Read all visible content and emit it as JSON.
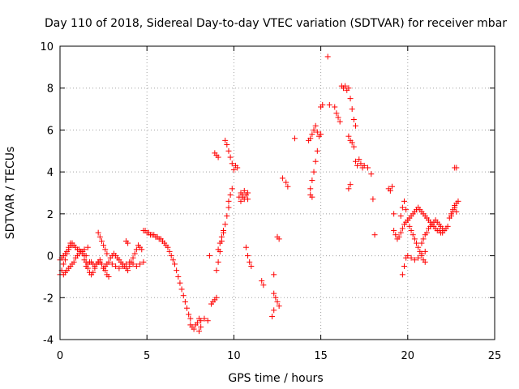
{
  "chart_data": {
    "type": "scatter",
    "title": "Day 110 of 2018, Sidereal Day-to-day VTEC variation (SDTVAR) for receiver mbar",
    "xlabel": "GPS time / hours",
    "ylabel": "SDTVAR / TECUs",
    "xlim": [
      0,
      25
    ],
    "ylim": [
      -4,
      10
    ],
    "grid": true,
    "marker": "+",
    "color": "#ff0000",
    "x_ticks": [
      "0",
      "5",
      "10",
      "15",
      "20",
      "25"
    ],
    "y_ticks": [
      "-4",
      "-2",
      "0",
      "2",
      "4",
      "6",
      "8",
      "10"
    ],
    "segments": [
      {
        "x": [
          0.0,
          0.1,
          0.2,
          0.3,
          0.4,
          0.5,
          0.6,
          0.7
        ],
        "y": [
          -0.9,
          -0.7,
          -0.4,
          -0.2,
          0.1,
          0.4,
          0.6,
          0.5
        ]
      },
      {
        "x": [
          0.0,
          0.1,
          0.2,
          0.3,
          0.4,
          0.5,
          0.6,
          0.7,
          0.8,
          0.9,
          1.0,
          1.1,
          1.2,
          1.3,
          1.4
        ],
        "y": [
          -0.2,
          -0.1,
          0.0,
          0.1,
          0.2,
          0.3,
          0.5,
          0.6,
          0.5,
          0.4,
          0.3,
          0.3,
          0.2,
          0.2,
          0.3
        ]
      },
      {
        "x": [
          0.2,
          0.3,
          0.4,
          0.5,
          0.6,
          0.7,
          0.8,
          0.9,
          1.0,
          1.1,
          1.2,
          1.3,
          1.4,
          1.5
        ],
        "y": [
          -0.9,
          -0.8,
          -0.7,
          -0.6,
          -0.5,
          -0.4,
          -0.3,
          -0.1,
          0.0,
          0.1,
          0.2,
          0.1,
          0.0,
          0.0
        ]
      },
      {
        "x": [
          1.5,
          1.6,
          1.7,
          1.8,
          1.9,
          2.0,
          2.1,
          2.2,
          2.3,
          2.4,
          2.5,
          2.6,
          2.7,
          2.8
        ],
        "y": [
          -0.5,
          -0.6,
          -0.8,
          -0.9,
          -0.8,
          -0.6,
          -0.4,
          -0.3,
          -0.3,
          -0.4,
          -0.6,
          -0.7,
          -0.9,
          -1.0
        ]
      },
      {
        "x": [
          1.4,
          1.5,
          1.6,
          1.7,
          1.8,
          1.9,
          2.0,
          2.1,
          2.2,
          2.3
        ],
        "y": [
          -0.2,
          -0.3,
          -0.4,
          -0.3,
          -0.3,
          -0.4,
          -0.5,
          -0.4,
          -0.3,
          -0.2
        ]
      },
      {
        "x": [
          2.2,
          2.3,
          2.4,
          2.5,
          2.6,
          2.7
        ],
        "y": [
          1.1,
          0.9,
          0.7,
          0.5,
          0.3,
          0.1
        ]
      },
      {
        "x": [
          2.5,
          2.6,
          2.7,
          2.8,
          2.9,
          3.0,
          3.1,
          3.2,
          3.3,
          3.4,
          3.5,
          3.6,
          3.7,
          3.8,
          3.9,
          4.0,
          4.1,
          4.2,
          4.3,
          4.4,
          4.5,
          4.6,
          4.7
        ],
        "y": [
          -0.6,
          -0.5,
          -0.4,
          -0.3,
          -0.1,
          0.0,
          0.1,
          0.0,
          -0.1,
          -0.2,
          -0.3,
          -0.4,
          -0.5,
          -0.6,
          -0.7,
          -0.5,
          -0.3,
          -0.1,
          0.1,
          0.3,
          0.5,
          0.4,
          0.3
        ]
      },
      {
        "x": [
          3.0,
          3.2,
          3.4,
          3.6,
          3.8,
          4.0,
          4.2,
          4.4,
          4.6,
          4.8
        ],
        "y": [
          -0.4,
          -0.5,
          -0.6,
          -0.5,
          -0.4,
          -0.3,
          -0.4,
          -0.5,
          -0.4,
          -0.3
        ]
      },
      {
        "x": [
          1.6,
          3.8,
          3.9
        ],
        "y": [
          0.4,
          0.7,
          0.6
        ]
      },
      {
        "x": [
          4.8,
          4.9,
          5.0,
          5.1,
          5.2,
          5.3,
          5.4,
          5.5,
          5.6,
          5.7,
          5.8,
          5.9,
          6.0,
          6.1,
          6.2,
          6.3,
          6.4,
          6.5,
          6.6
        ],
        "y": [
          1.2,
          1.2,
          1.1,
          1.1,
          1.0,
          1.0,
          1.0,
          0.9,
          0.9,
          0.8,
          0.8,
          0.7,
          0.6,
          0.5,
          0.4,
          0.2,
          0.0,
          -0.2,
          -0.4
        ]
      },
      {
        "x": [
          6.7,
          6.8,
          6.9,
          7.0,
          7.1,
          7.2,
          7.3,
          7.4,
          7.5
        ],
        "y": [
          -0.7,
          -1.0,
          -1.3,
          -1.6,
          -1.9,
          -2.2,
          -2.5,
          -2.8,
          -3.0
        ]
      },
      {
        "x": [
          7.5,
          7.6,
          7.7,
          7.8,
          7.9,
          8.0,
          8.1,
          8.3,
          8.5
        ],
        "y": [
          -3.3,
          -3.4,
          -3.5,
          -3.3,
          -3.2,
          -3.0,
          -3.1,
          -3.0,
          -3.1
        ]
      },
      {
        "x": [
          8.0,
          8.1
        ],
        "y": [
          -3.6,
          -3.4
        ]
      },
      {
        "x": [
          8.6,
          8.7,
          8.8,
          8.9,
          9.0
        ],
        "y": [
          0.0,
          -2.3,
          -2.2,
          -2.1,
          -2.0
        ]
      },
      {
        "x": [
          8.9,
          9.0,
          9.1
        ],
        "y": [
          4.9,
          4.8,
          4.7
        ]
      },
      {
        "x": [
          9.0,
          9.1,
          9.2,
          9.3,
          9.4,
          9.5,
          9.6,
          9.7
        ],
        "y": [
          -0.7,
          -0.3,
          0.2,
          0.7,
          1.1,
          1.5,
          1.9,
          2.3
        ]
      },
      {
        "x": [
          9.1,
          9.2,
          9.3,
          9.4
        ],
        "y": [
          0.3,
          0.6,
          0.9,
          1.2
        ]
      },
      {
        "x": [
          9.5,
          9.6,
          9.7,
          9.8,
          9.9
        ],
        "y": [
          5.5,
          5.3,
          5.0,
          4.7,
          4.4
        ]
      },
      {
        "x": [
          9.7,
          9.8,
          9.9
        ],
        "y": [
          2.6,
          2.9,
          3.2
        ]
      },
      {
        "x": [
          10.0,
          10.1,
          10.2
        ],
        "y": [
          4.1,
          4.3,
          4.2
        ]
      },
      {
        "x": [
          10.3,
          10.4,
          10.5,
          10.6,
          10.7,
          10.8
        ],
        "y": [
          2.8,
          3.0,
          2.9,
          2.7,
          2.9,
          3.0
        ]
      },
      {
        "x": [
          10.4,
          10.5,
          10.6,
          10.7,
          10.8
        ],
        "y": [
          2.6,
          2.8,
          3.1,
          2.9,
          2.7
        ]
      },
      {
        "x": [
          10.7,
          10.8,
          10.9,
          11.0
        ],
        "y": [
          0.4,
          0.0,
          -0.3,
          -0.5
        ]
      },
      {
        "x": [
          11.6,
          11.7,
          12.3
        ],
        "y": [
          -1.2,
          -1.4,
          -0.9
        ]
      },
      {
        "x": [
          12.3,
          12.4,
          12.5,
          12.6
        ],
        "y": [
          -1.8,
          -2.0,
          -2.2,
          -2.4
        ]
      },
      {
        "x": [
          12.2,
          12.3,
          12.5,
          12.6
        ],
        "y": [
          -2.9,
          -2.6,
          0.9,
          0.8
        ]
      },
      {
        "x": [
          12.8,
          13.0,
          13.1,
          13.5
        ],
        "y": [
          3.7,
          3.5,
          3.3,
          5.6
        ]
      },
      {
        "x": [
          14.3,
          14.4,
          14.5,
          14.6,
          14.7,
          14.8,
          14.9,
          15.0
        ],
        "y": [
          5.5,
          5.6,
          5.8,
          6.0,
          6.2,
          5.9,
          5.7,
          5.8
        ]
      },
      {
        "x": [
          14.4,
          14.5,
          14.6,
          14.7,
          14.8
        ],
        "y": [
          3.2,
          3.6,
          4.0,
          4.5,
          5.0
        ]
      },
      {
        "x": [
          14.4,
          14.5
        ],
        "y": [
          2.9,
          2.8
        ]
      },
      {
        "x": [
          15.0,
          15.1,
          15.4,
          15.5
        ],
        "y": [
          7.1,
          7.2,
          9.5,
          7.2
        ]
      },
      {
        "x": [
          15.8,
          15.9,
          16.0,
          16.1
        ],
        "y": [
          7.1,
          6.8,
          6.6,
          6.4
        ]
      },
      {
        "x": [
          16.2,
          16.3,
          16.4,
          16.5,
          16.6,
          16.7,
          16.8,
          16.9,
          17.0
        ],
        "y": [
          8.1,
          8.0,
          8.1,
          7.9,
          8.0,
          7.5,
          7.0,
          6.5,
          6.2
        ]
      },
      {
        "x": [
          16.6,
          16.7,
          16.8,
          16.9
        ],
        "y": [
          5.7,
          5.5,
          5.4,
          5.2
        ]
      },
      {
        "x": [
          16.6,
          16.7
        ],
        "y": [
          3.2,
          3.4
        ]
      },
      {
        "x": [
          17.0,
          17.1,
          17.2,
          17.3,
          17.4,
          17.5
        ],
        "y": [
          4.5,
          4.3,
          4.6,
          4.4,
          4.2,
          4.3
        ]
      },
      {
        "x": [
          17.7,
          17.9,
          18.0,
          18.1
        ],
        "y": [
          4.2,
          3.9,
          2.7,
          1.0
        ]
      },
      {
        "x": [
          18.9,
          19.0,
          19.1,
          19.2
        ],
        "y": [
          3.2,
          3.1,
          3.3,
          2.0
        ]
      },
      {
        "x": [
          19.2,
          19.3,
          19.4,
          19.5,
          19.6,
          19.7,
          19.8,
          19.9,
          20.0,
          20.1,
          20.2,
          20.3,
          20.4,
          20.5,
          20.6,
          20.7,
          20.8,
          20.9,
          21.0,
          21.1,
          21.2,
          21.3,
          21.4,
          21.5,
          21.6,
          21.7,
          21.8,
          21.9,
          22.0,
          22.1,
          22.2,
          22.3
        ],
        "y": [
          1.2,
          1.0,
          0.8,
          0.9,
          1.1,
          1.3,
          1.5,
          1.6,
          1.7,
          1.8,
          1.9,
          2.0,
          2.1,
          2.2,
          2.3,
          2.2,
          2.1,
          2.0,
          1.9,
          1.8,
          1.7,
          1.6,
          1.5,
          1.4,
          1.3,
          1.2,
          1.2,
          1.1,
          1.1,
          1.2,
          1.3,
          1.4
        ]
      },
      {
        "x": [
          19.6,
          19.7,
          19.8,
          19.9,
          20.0,
          20.1,
          20.2,
          20.3,
          20.4,
          20.5,
          20.6,
          20.7,
          20.8,
          20.9,
          21.0
        ],
        "y": [
          1.9,
          2.3,
          2.6,
          2.2,
          1.7,
          1.4,
          1.2,
          1.0,
          0.8,
          0.6,
          0.4,
          0.2,
          0.0,
          -0.2,
          -0.3
        ]
      },
      {
        "x": [
          19.7,
          19.8,
          19.9,
          20.0,
          20.2,
          20.4,
          20.6,
          20.8,
          21.0
        ],
        "y": [
          -0.9,
          -0.5,
          -0.1,
          0.0,
          -0.1,
          -0.2,
          -0.1,
          0.1,
          0.2
        ]
      },
      {
        "x": [
          20.8,
          20.9,
          21.0,
          21.1,
          21.2,
          21.3,
          21.4,
          21.5,
          21.6,
          21.7,
          21.8,
          21.9,
          22.0
        ],
        "y": [
          0.6,
          0.8,
          1.0,
          1.1,
          1.3,
          1.4,
          1.5,
          1.6,
          1.7,
          1.6,
          1.5,
          1.4,
          1.3
        ]
      },
      {
        "x": [
          22.4,
          22.5,
          22.6,
          22.7,
          22.8,
          22.9
        ],
        "y": [
          1.8,
          2.0,
          2.2,
          2.4,
          2.5,
          2.6
        ]
      },
      {
        "x": [
          22.5,
          22.6,
          22.7,
          22.8
        ],
        "y": [
          1.9,
          2.1,
          2.3,
          2.1
        ]
      },
      {
        "x": [
          22.7,
          22.8
        ],
        "y": [
          4.2,
          4.2
        ]
      }
    ]
  }
}
